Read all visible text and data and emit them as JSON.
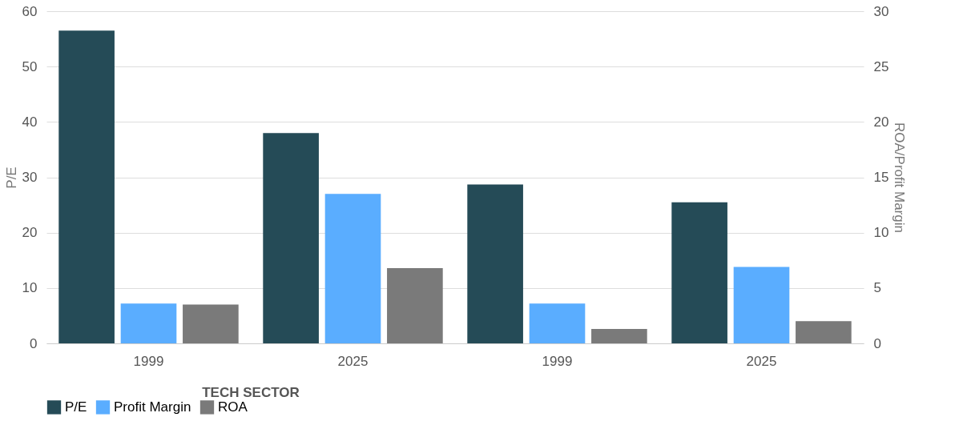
{
  "chart_data": {
    "type": "bar",
    "categories": [
      "1999",
      "2025",
      "1999",
      "2025"
    ],
    "series": [
      {
        "name": "P/E",
        "color": "#254b57",
        "values": [
          56.5,
          38.0,
          28.7,
          25.5
        ]
      },
      {
        "name": "Profit Margin",
        "color": "#5aadff",
        "values": [
          3.6,
          13.5,
          3.6,
          6.9
        ],
        "axis": "y2"
      },
      {
        "name": "ROA",
        "color": "#7a7a7a",
        "values": [
          3.5,
          6.8,
          1.3,
          2.0
        ],
        "axis": "y2"
      }
    ],
    "ylabel": "P/E",
    "y2label": "ROA/Profit Margin",
    "ylim": [
      0,
      60
    ],
    "yticks": [
      0,
      10,
      20,
      30,
      40,
      50,
      60
    ],
    "y2lim": [
      0,
      30
    ],
    "y2ticks": [
      0,
      5,
      10,
      15,
      20,
      25,
      30
    ],
    "annotations": [
      "TECH SECTOR"
    ],
    "grid": "y",
    "legend": "bottom"
  }
}
